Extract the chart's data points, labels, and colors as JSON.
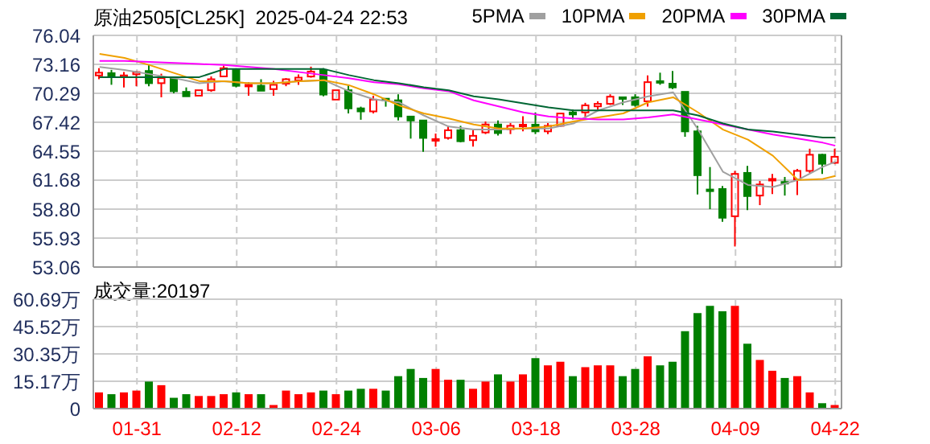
{
  "chart_data": [
    {
      "type": "candlestick",
      "title": "原油2505[CL25K]  2025-04-24 22:53",
      "categories": [
        null,
        null,
        null,
        null,
        null,
        null,
        null,
        null,
        null,
        null,
        null,
        null,
        null,
        null,
        null,
        null,
        null,
        null,
        null,
        null,
        null,
        null,
        null,
        null,
        null,
        null,
        null,
        null,
        null,
        null,
        null,
        null,
        null,
        null,
        null,
        null,
        null,
        null,
        null,
        null,
        null,
        null,
        null,
        null,
        null,
        null,
        null,
        null,
        null,
        null,
        null,
        null,
        null,
        null,
        null,
        null,
        null,
        null,
        null,
        null
      ],
      "ohlc": [
        [
          72.07,
          72.78,
          71.7,
          72.34
        ],
        [
          72.29,
          72.62,
          71.14,
          71.96
        ],
        [
          71.9,
          72.4,
          70.88,
          72.07
        ],
        [
          72.18,
          72.51,
          71.0,
          72.4
        ],
        [
          72.51,
          73.16,
          71.0,
          71.3
        ],
        [
          71.3,
          72.24,
          69.9,
          71.8
        ],
        [
          71.8,
          71.97,
          70.29,
          70.5
        ],
        [
          70.44,
          70.88,
          70.0,
          70.0
        ],
        [
          70.06,
          70.6,
          70.06,
          70.6
        ],
        [
          70.6,
          71.97,
          70.44,
          71.69
        ],
        [
          71.97,
          73.05,
          71.9,
          72.78
        ],
        [
          72.62,
          72.78,
          70.88,
          71.04
        ],
        [
          71.0,
          71.42,
          70.06,
          71.14
        ],
        [
          71.04,
          71.69,
          70.55,
          70.55
        ],
        [
          70.71,
          71.53,
          70.06,
          71.14
        ],
        [
          71.25,
          71.8,
          71.0,
          71.69
        ],
        [
          71.58,
          72.18,
          71.14,
          71.85
        ],
        [
          71.96,
          72.94,
          71.85,
          72.45
        ],
        [
          72.62,
          72.78,
          70.0,
          70.17
        ],
        [
          69.67,
          70.6,
          69.67,
          70.6
        ],
        [
          70.6,
          71.14,
          68.3,
          68.8
        ],
        [
          68.8,
          68.97,
          67.67,
          68.5
        ],
        [
          68.5,
          70.06,
          68.3,
          69.67
        ],
        [
          69.76,
          69.8,
          68.97,
          69.6
        ],
        [
          69.6,
          70.2,
          67.6,
          68.0
        ],
        [
          67.99,
          67.99,
          65.8,
          67.6
        ],
        [
          67.6,
          67.6,
          64.5,
          65.87
        ],
        [
          65.7,
          66.3,
          65.0,
          65.75
        ],
        [
          65.87,
          67.07,
          65.7,
          66.63
        ],
        [
          66.63,
          67.07,
          65.43,
          65.54
        ],
        [
          65.65,
          66.63,
          65.0,
          66.08
        ],
        [
          66.41,
          67.5,
          66.25,
          67.2
        ],
        [
          67.2,
          67.6,
          66.1,
          66.35
        ],
        [
          66.74,
          67.35,
          66.25,
          67.07
        ],
        [
          67.02,
          68.03,
          66.52,
          67.18
        ],
        [
          67.18,
          68.4,
          66.25,
          66.52
        ],
        [
          66.52,
          67.35,
          66.25,
          67.07
        ],
        [
          67.07,
          68.29,
          66.96,
          68.29
        ],
        [
          68.4,
          68.7,
          67.7,
          68.2
        ],
        [
          68.4,
          69.35,
          67.7,
          69.1
        ],
        [
          69.0,
          69.5,
          68.7,
          69.25
        ],
        [
          69.25,
          70.2,
          69.14,
          69.96
        ],
        [
          69.9,
          69.9,
          69.14,
          69.8
        ],
        [
          69.9,
          70.2,
          68.97,
          69.14
        ],
        [
          69.5,
          72.07,
          68.97,
          71.4
        ],
        [
          71.5,
          72.34,
          71.14,
          71.35
        ],
        [
          71.25,
          72.5,
          70.71,
          70.88
        ],
        [
          70.44,
          70.44,
          65.98,
          66.52
        ],
        [
          66.52,
          67.07,
          60.26,
          62.17
        ],
        [
          60.75,
          62.98,
          58.8,
          60.6
        ],
        [
          60.8,
          61.1,
          57.55,
          57.95
        ],
        [
          58.1,
          62.6,
          55.1,
          62.3
        ],
        [
          62.4,
          63.1,
          58.7,
          60.1
        ],
        [
          60.15,
          61.6,
          59.2,
          61.25
        ],
        [
          61.65,
          62.3,
          60.3,
          61.8
        ],
        [
          61.5,
          62.0,
          60.15,
          61.4
        ],
        [
          61.75,
          62.8,
          60.2,
          62.6
        ],
        [
          62.6,
          64.8,
          62.4,
          64.2
        ],
        [
          64.2,
          64.3,
          62.3,
          63.3
        ],
        [
          63.4,
          64.8,
          63.3,
          64.0
        ]
      ],
      "colors": [
        "#ff0000",
        "#008000",
        "#ff0000",
        "#ff0000",
        "#008000",
        "#ff0000",
        "#008000",
        "#008000",
        "#ff0000",
        "#ff0000",
        "#ff0000",
        "#008000",
        "#ff0000",
        "#008000",
        "#ff0000",
        "#ff0000",
        "#ff0000",
        "#ff0000",
        "#008000",
        "#ff0000",
        "#008000",
        "#008000",
        "#ff0000",
        "#008000",
        "#008000",
        "#008000",
        "#008000",
        "#ff0000",
        "#ff0000",
        "#008000",
        "#ff0000",
        "#ff0000",
        "#008000",
        "#ff0000",
        "#ff0000",
        "#008000",
        "#ff0000",
        "#ff0000",
        "#008000",
        "#ff0000",
        "#ff0000",
        "#ff0000",
        "#008000",
        "#008000",
        "#ff0000",
        "#008000",
        "#008000",
        "#008000",
        "#008000",
        "#008000",
        "#008000",
        "#ff0000",
        "#008000",
        "#ff0000",
        "#ff0000",
        "#008000",
        "#ff0000",
        "#ff0000",
        "#008000",
        "#ff0000"
      ],
      "series": [
        {
          "name": "5PMA",
          "type": "line",
          "color": "#a0a0a0",
          "values": [
            72.9,
            null,
            72.6,
            null,
            72.2,
            null,
            71.8,
            null,
            71.3,
            null,
            71.5,
            null,
            71.3,
            null,
            71.3,
            null,
            71.5,
            null,
            71.6,
            null,
            70.5,
            null,
            69.7,
            null,
            69.4,
            null,
            68.1,
            null,
            67.0,
            null,
            66.7,
            null,
            66.7,
            null,
            66.8,
            null,
            66.8,
            null,
            67.3,
            null,
            68.6,
            null,
            69.4,
            null,
            70.0,
            null,
            70.4,
            null,
            66.7,
            null,
            62.5,
            null,
            61.2,
            null,
            61.0,
            null,
            61.7,
            null,
            63.0,
            63.5
          ]
        },
        {
          "name": "10PMA",
          "type": "line",
          "color": "#f0a000",
          "values": [
            74.2,
            null,
            73.8,
            null,
            73.1,
            null,
            72.3,
            null,
            71.5,
            null,
            71.5,
            null,
            71.3,
            null,
            71.3,
            null,
            71.5,
            null,
            71.6,
            null,
            71.1,
            null,
            70.2,
            null,
            69.1,
            null,
            68.3,
            null,
            67.8,
            null,
            67.2,
            null,
            66.8,
            null,
            66.8,
            null,
            67.0,
            null,
            67.5,
            null,
            67.9,
            null,
            68.3,
            null,
            69.4,
            null,
            69.9,
            null,
            68.4,
            null,
            66.7,
            null,
            65.7,
            null,
            64.1,
            null,
            61.7,
            null,
            61.8,
            62.1
          ]
        },
        {
          "name": "20PMA",
          "type": "line",
          "color": "#ff00ff",
          "values": [
            73.5,
            null,
            73.5,
            null,
            73.4,
            null,
            73.3,
            null,
            73.2,
            null,
            73.1,
            null,
            72.9,
            null,
            72.7,
            null,
            72.4,
            null,
            72.1,
            null,
            71.8,
            null,
            71.4,
            null,
            71.2,
            null,
            70.8,
            null,
            70.5,
            null,
            69.6,
            null,
            69.0,
            null,
            68.4,
            null,
            68.0,
            null,
            67.8,
            null,
            67.7,
            null,
            67.7,
            null,
            67.9,
            null,
            68.2,
            null,
            67.7,
            null,
            67.2,
            null,
            66.7,
            null,
            66.2,
            null,
            65.8,
            null,
            65.4,
            65.1
          ]
        },
        {
          "name": "30PMA",
          "type": "line",
          "color": "#006633",
          "values": [
            71.9,
            null,
            71.9,
            null,
            71.9,
            null,
            71.9,
            null,
            71.9,
            null,
            72.7,
            null,
            72.7,
            null,
            72.7,
            null,
            72.7,
            null,
            72.7,
            null,
            72.1,
            null,
            71.6,
            null,
            71.3,
            null,
            70.9,
            null,
            70.6,
            null,
            70.0,
            null,
            69.7,
            null,
            69.3,
            null,
            68.9,
            null,
            68.6,
            null,
            68.6,
            null,
            68.6,
            null,
            68.6,
            null,
            68.6,
            null,
            68.1,
            null,
            67.3,
            null,
            66.7,
            null,
            66.5,
            null,
            66.2,
            null,
            65.9,
            65.9
          ]
        }
      ],
      "ylim": [
        53.06,
        76.04
      ],
      "yticks": [
        53.06,
        55.93,
        {
          "value": 58.8,
          "label": "58.80"
        },
        61.68,
        64.55,
        67.42,
        70.29,
        73.16,
        76.04
      ],
      "grid": true,
      "legend": "top right",
      "tick_labels": "y"
    },
    {
      "type": "bar",
      "title": "成交量:20197",
      "categories": [
        null,
        null,
        null,
        "01-31",
        null,
        null,
        null,
        null,
        null,
        null,
        null,
        "02-12",
        null,
        null,
        null,
        null,
        null,
        null,
        null,
        "02-24",
        null,
        null,
        null,
        null,
        null,
        null,
        null,
        "03-06",
        null,
        null,
        null,
        null,
        null,
        null,
        null,
        "03-18",
        null,
        null,
        null,
        null,
        null,
        null,
        null,
        "03-28",
        null,
        null,
        null,
        null,
        null,
        null,
        null,
        "04-09",
        null,
        null,
        null,
        null,
        null,
        null,
        null,
        "04-22"
      ],
      "values": [
        9,
        8,
        9,
        10,
        15,
        13,
        6,
        8,
        7,
        7,
        8,
        9,
        8,
        8,
        2,
        10,
        8,
        9,
        10,
        8,
        10,
        11,
        11,
        10,
        18,
        22,
        17,
        22,
        16,
        16,
        11,
        15,
        19,
        15,
        19,
        28,
        24,
        26,
        18,
        23,
        24,
        24,
        18,
        22,
        29,
        24,
        26,
        43,
        53,
        57,
        54,
        57,
        36,
        27,
        21,
        17,
        18,
        9,
        3,
        2
      ],
      "colors": [
        "#ff0000",
        "#008000",
        "#ff0000",
        "#ff0000",
        "#008000",
        "#ff0000",
        "#008000",
        "#008000",
        "#ff0000",
        "#ff0000",
        "#ff0000",
        "#008000",
        "#ff0000",
        "#008000",
        "#ff0000",
        "#ff0000",
        "#ff0000",
        "#ff0000",
        "#008000",
        "#ff0000",
        "#008000",
        "#008000",
        "#ff0000",
        "#008000",
        "#008000",
        "#008000",
        "#008000",
        "#ff0000",
        "#ff0000",
        "#008000",
        "#ff0000",
        "#ff0000",
        "#008000",
        "#ff0000",
        "#ff0000",
        "#008000",
        "#ff0000",
        "#ff0000",
        "#008000",
        "#ff0000",
        "#ff0000",
        "#ff0000",
        "#008000",
        "#008000",
        "#ff0000",
        "#008000",
        "#008000",
        "#008000",
        "#008000",
        "#008000",
        "#008000",
        "#ff0000",
        "#008000",
        "#ff0000",
        "#ff0000",
        "#008000",
        "#ff0000",
        "#ff0000",
        "#008000",
        "#ff0000"
      ],
      "ylim": [
        0,
        60.69
      ],
      "yticks": [
        0,
        {
          "value": 15.17,
          "label": "15.17万"
        },
        {
          "value": 30.35,
          "label": "30.35万"
        },
        {
          "value": 45.52,
          "label": "45.52万"
        },
        {
          "value": 60.69,
          "label": "60.69万"
        }
      ],
      "grid": true
    }
  ]
}
